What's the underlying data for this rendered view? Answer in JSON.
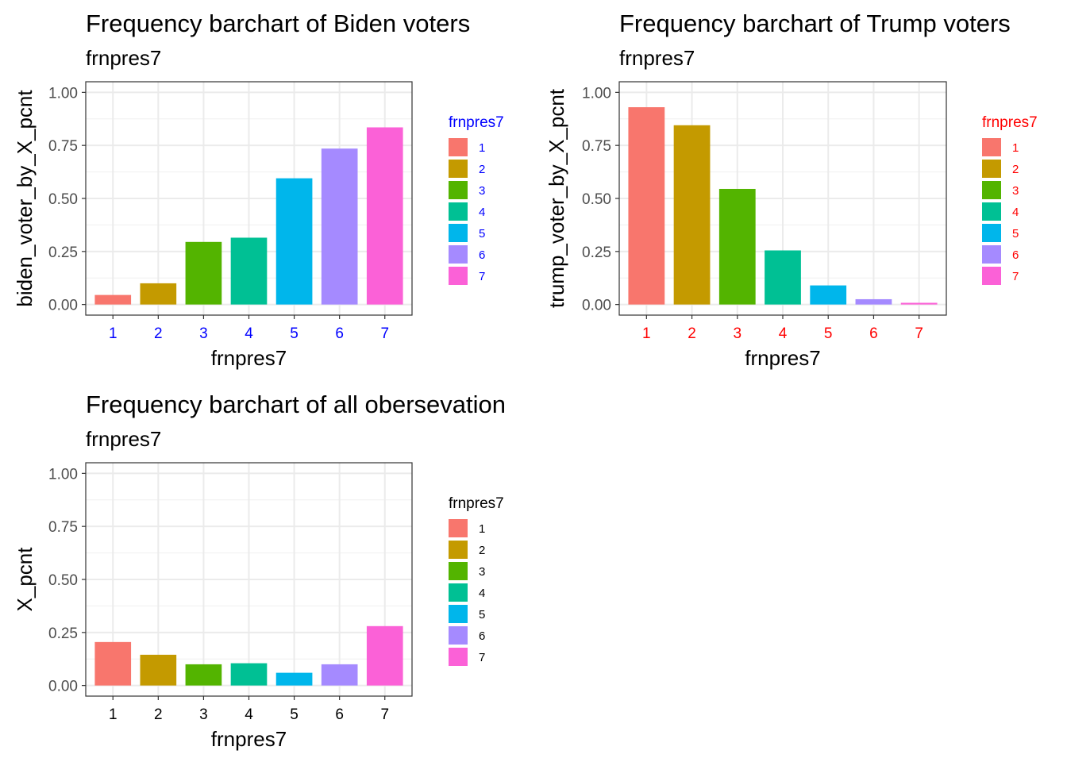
{
  "chart_data": [
    {
      "type": "bar",
      "title": "Frequency barchart of Biden voters",
      "subtitle": "frnpres7",
      "xlabel": "frnpres7",
      "ylabel": "biden_voter_by_X_pcnt",
      "categories": [
        "1",
        "2",
        "3",
        "4",
        "5",
        "6",
        "7"
      ],
      "values": [
        0.045,
        0.1,
        0.295,
        0.315,
        0.595,
        0.735,
        0.835
      ],
      "ylim": [
        0,
        1
      ],
      "yticks": [
        "0.00",
        "0.25",
        "0.50",
        "0.75",
        "1.00"
      ],
      "grid": true,
      "legend": {
        "title": "frnpres7",
        "position": "right",
        "labels": [
          "1",
          "2",
          "3",
          "4",
          "5",
          "6",
          "7"
        ]
      },
      "label_color": "#0000FF"
    },
    {
      "type": "bar",
      "title": "Frequency barchart of Trump voters",
      "subtitle": "frnpres7",
      "xlabel": "frnpres7",
      "ylabel": "trump_voter_by_X_pcnt",
      "categories": [
        "1",
        "2",
        "3",
        "4",
        "5",
        "6",
        "7"
      ],
      "values": [
        0.93,
        0.845,
        0.545,
        0.255,
        0.09,
        0.025,
        0.008
      ],
      "ylim": [
        0,
        1
      ],
      "yticks": [
        "0.00",
        "0.25",
        "0.50",
        "0.75",
        "1.00"
      ],
      "grid": true,
      "legend": {
        "title": "frnpres7",
        "position": "right",
        "labels": [
          "1",
          "2",
          "3",
          "4",
          "5",
          "6",
          "7"
        ]
      },
      "label_color": "#FF0000"
    },
    {
      "type": "bar",
      "title": "Frequency barchart of all obersevation",
      "subtitle": "frnpres7",
      "xlabel": "frnpres7",
      "ylabel": "X_pcnt",
      "categories": [
        "1",
        "2",
        "3",
        "4",
        "5",
        "6",
        "7"
      ],
      "values": [
        0.205,
        0.145,
        0.1,
        0.105,
        0.06,
        0.1,
        0.28
      ],
      "ylim": [
        0,
        1
      ],
      "yticks": [
        "0.00",
        "0.25",
        "0.50",
        "0.75",
        "1.00"
      ],
      "grid": true,
      "legend": {
        "title": "frnpres7",
        "position": "right",
        "labels": [
          "1",
          "2",
          "3",
          "4",
          "5",
          "6",
          "7"
        ]
      },
      "label_color": "#000000"
    }
  ],
  "palette": [
    "#F8766D",
    "#C49A00",
    "#53B400",
    "#00C094",
    "#00B6EB",
    "#A58AFF",
    "#FB61D7"
  ]
}
